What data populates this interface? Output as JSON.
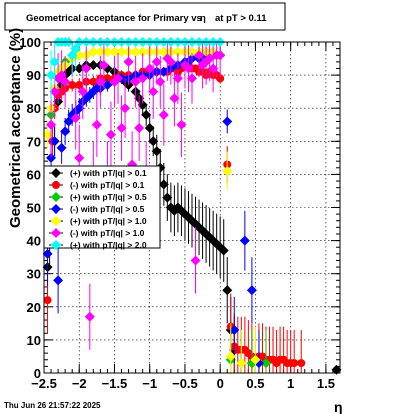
{
  "chart_data": {
    "type": "scatter",
    "title": "Geometrical acceptance for Primary vs",
    "title_symbol": "η",
    "title_suffix": "at pT > 0.11",
    "xlabel": "η",
    "ylabel": "Geometrical acceptance (%)",
    "xlim": [
      -2.5,
      1.7
    ],
    "ylim": [
      0,
      100
    ],
    "x_ticks": [
      -2.5,
      -2,
      -1.5,
      -1,
      -0.5,
      0,
      0.5,
      1,
      1.5
    ],
    "x_tick_labels": [
      "−2.5",
      "−2",
      "−1.5",
      "−1",
      "−0.5",
      "0",
      "0.5",
      "1",
      "1.5"
    ],
    "y_ticks": [
      0,
      10,
      20,
      30,
      40,
      50,
      60,
      70,
      80,
      90,
      100
    ],
    "y_tick_labels": [
      "0",
      "10",
      "20",
      "30",
      "40",
      "50",
      "60",
      "70",
      "80",
      "90",
      "100"
    ],
    "grid": true,
    "legend_position": "left-middle",
    "timestamp": "Thu Jun 26 21:57:22 2025",
    "series": [
      {
        "name": "(+) with pT/|q| > 0.1",
        "color": "#000000",
        "points": [
          [
            -2.45,
            32
          ],
          [
            -2.42,
            40
          ],
          [
            -2.38,
            56
          ],
          [
            -2.35,
            70
          ],
          [
            -2.3,
            82
          ],
          [
            -2.25,
            87
          ],
          [
            -2.2,
            90
          ],
          [
            -2.15,
            91
          ],
          [
            -2.1,
            92
          ],
          [
            -2.0,
            92
          ],
          [
            -1.9,
            93
          ],
          [
            -1.8,
            93
          ],
          [
            -1.7,
            93
          ],
          [
            -1.6,
            92
          ],
          [
            -1.5,
            91
          ],
          [
            -1.45,
            90
          ],
          [
            -1.4,
            89
          ],
          [
            -1.35,
            88
          ],
          [
            -1.3,
            87
          ],
          [
            -1.2,
            85
          ],
          [
            -1.15,
            83
          ],
          [
            -1.1,
            81
          ],
          [
            -1.05,
            78
          ],
          [
            -1.0,
            74
          ],
          [
            -0.95,
            70
          ],
          [
            -0.9,
            67
          ],
          [
            -0.85,
            62
          ],
          [
            -0.8,
            57
          ],
          [
            -0.75,
            53
          ],
          [
            -0.7,
            50
          ],
          [
            -0.65,
            49
          ],
          [
            -0.6,
            50
          ],
          [
            -0.55,
            49
          ],
          [
            -0.5,
            48
          ],
          [
            -0.45,
            47
          ],
          [
            -0.4,
            46
          ],
          [
            -0.35,
            45
          ],
          [
            -0.3,
            44
          ],
          [
            -0.25,
            43
          ],
          [
            -0.2,
            42
          ],
          [
            -0.15,
            41
          ],
          [
            -0.1,
            40
          ],
          [
            -0.05,
            39
          ],
          [
            0.0,
            38
          ],
          [
            0.05,
            37
          ],
          [
            0.1,
            25
          ],
          [
            0.15,
            13
          ],
          [
            0.2,
            7
          ],
          [
            0.3,
            3
          ],
          [
            0.45,
            3
          ],
          [
            1.65,
            1
          ]
        ]
      },
      {
        "name": "(-) with pT/|q| > 0.1",
        "color": "#ff0000",
        "points": [
          [
            -2.45,
            22
          ],
          [
            -2.42,
            50
          ],
          [
            -2.38,
            70
          ],
          [
            -2.35,
            80
          ],
          [
            -2.3,
            84
          ],
          [
            -2.25,
            85
          ],
          [
            -2.2,
            86
          ],
          [
            -2.1,
            87
          ],
          [
            -2.0,
            87
          ],
          [
            -1.9,
            88
          ],
          [
            -1.8,
            88
          ],
          [
            -1.7,
            89
          ],
          [
            -1.6,
            89
          ],
          [
            -1.5,
            89
          ],
          [
            -1.45,
            89
          ],
          [
            -1.4,
            90
          ],
          [
            -1.3,
            90
          ],
          [
            -1.2,
            90
          ],
          [
            -1.1,
            91
          ],
          [
            -1.0,
            91
          ],
          [
            -0.9,
            91
          ],
          [
            -0.8,
            91
          ],
          [
            -0.75,
            91
          ],
          [
            -0.7,
            92
          ],
          [
            -0.65,
            92
          ],
          [
            -0.6,
            91
          ],
          [
            -0.55,
            92
          ],
          [
            -0.5,
            93
          ],
          [
            -0.45,
            93
          ],
          [
            -0.4,
            92
          ],
          [
            -0.35,
            92
          ],
          [
            -0.3,
            91
          ],
          [
            -0.25,
            91
          ],
          [
            -0.2,
            90
          ],
          [
            -0.15,
            91
          ],
          [
            -0.1,
            90
          ],
          [
            -0.05,
            90
          ],
          [
            0.0,
            89
          ],
          [
            0.1,
            63
          ],
          [
            0.15,
            14
          ],
          [
            0.2,
            8
          ],
          [
            0.25,
            7
          ],
          [
            0.3,
            7
          ],
          [
            0.35,
            7
          ],
          [
            0.4,
            6
          ],
          [
            0.45,
            5
          ],
          [
            0.5,
            4
          ],
          [
            0.55,
            5
          ],
          [
            0.6,
            5
          ],
          [
            0.65,
            4
          ],
          [
            0.7,
            4
          ],
          [
            0.75,
            4
          ],
          [
            0.8,
            3
          ],
          [
            0.85,
            4
          ],
          [
            0.9,
            4
          ],
          [
            0.95,
            3
          ],
          [
            1.0,
            3
          ],
          [
            1.05,
            3
          ],
          [
            1.15,
            3
          ]
        ]
      },
      {
        "name": "(+) with pT/|q| > 0.5",
        "color": "#00cc00",
        "points": [
          [
            -2.4,
            78
          ],
          [
            -2.35,
            86
          ],
          [
            -2.3,
            90
          ],
          [
            -2.25,
            92
          ],
          [
            -2.2,
            94
          ],
          [
            -2.1,
            95
          ],
          [
            -2.0,
            96
          ],
          [
            -1.9,
            96
          ],
          [
            -1.8,
            97
          ],
          [
            -1.7,
            97
          ],
          [
            -1.6,
            97
          ],
          [
            -1.5,
            97
          ],
          [
            -1.4,
            97
          ],
          [
            -1.3,
            97
          ],
          [
            -1.2,
            97
          ],
          [
            -1.1,
            97
          ],
          [
            -1.0,
            97
          ],
          [
            -0.9,
            97
          ],
          [
            -0.8,
            97
          ],
          [
            -0.7,
            97
          ],
          [
            -0.6,
            97
          ],
          [
            -0.5,
            97
          ],
          [
            -0.4,
            97
          ],
          [
            -0.3,
            97
          ],
          [
            -0.2,
            97
          ],
          [
            -0.1,
            97
          ],
          [
            0.0,
            96
          ],
          [
            0.15,
            4
          ],
          [
            0.3,
            3
          ],
          [
            0.45,
            3
          ],
          [
            0.65,
            3
          ]
        ]
      },
      {
        "name": "(-) with pT/|q| > 0.5",
        "color": "#0000ff",
        "points": [
          [
            -2.45,
            36
          ],
          [
            -2.4,
            65
          ],
          [
            -2.35,
            70
          ],
          [
            -2.3,
            28
          ],
          [
            -2.25,
            68
          ],
          [
            -2.2,
            73
          ],
          [
            -2.15,
            76
          ],
          [
            -2.1,
            78
          ],
          [
            -2.05,
            79
          ],
          [
            -2.0,
            80
          ],
          [
            -1.95,
            82
          ],
          [
            -1.9,
            83
          ],
          [
            -1.85,
            84
          ],
          [
            -1.8,
            85
          ],
          [
            -1.75,
            86
          ],
          [
            -1.7,
            86
          ],
          [
            -1.6,
            87
          ],
          [
            -1.5,
            88
          ],
          [
            -1.45,
            89
          ],
          [
            -1.4,
            89
          ],
          [
            -1.3,
            89
          ],
          [
            -1.2,
            90
          ],
          [
            -1.1,
            90
          ],
          [
            -1.0,
            90
          ],
          [
            -0.9,
            91
          ],
          [
            -0.8,
            91
          ],
          [
            -0.7,
            92
          ],
          [
            -0.6,
            93
          ],
          [
            -0.5,
            94
          ],
          [
            -0.45,
            94
          ],
          [
            -0.4,
            95
          ],
          [
            -0.3,
            95
          ],
          [
            -0.2,
            96
          ],
          [
            -0.1,
            96
          ],
          [
            0.0,
            96
          ],
          [
            0.1,
            76
          ],
          [
            0.2,
            13
          ],
          [
            0.35,
            40
          ],
          [
            0.45,
            25
          ],
          [
            0.55,
            3
          ]
        ]
      },
      {
        "name": "(+) with pT/|q| > 1.0",
        "color": "#ffff00",
        "points": [
          [
            -2.45,
            72
          ],
          [
            -2.4,
            80
          ],
          [
            -2.35,
            86
          ],
          [
            -2.3,
            91
          ],
          [
            -2.25,
            92
          ],
          [
            -2.2,
            93
          ],
          [
            -2.1,
            95
          ],
          [
            -2.0,
            96
          ],
          [
            -1.9,
            96
          ],
          [
            -1.8,
            97
          ],
          [
            -1.7,
            97
          ],
          [
            -1.6,
            97
          ],
          [
            -1.5,
            97
          ],
          [
            -1.4,
            97
          ],
          [
            -1.3,
            97
          ],
          [
            -1.2,
            97
          ],
          [
            -1.1,
            97
          ],
          [
            -1.0,
            97
          ],
          [
            -0.9,
            97
          ],
          [
            -0.8,
            97
          ],
          [
            -0.7,
            97
          ],
          [
            -0.6,
            97
          ],
          [
            -0.5,
            97
          ],
          [
            -0.4,
            97
          ],
          [
            -0.3,
            97
          ],
          [
            -0.2,
            97
          ],
          [
            -0.1,
            97
          ],
          [
            0.0,
            96
          ],
          [
            0.1,
            61
          ],
          [
            0.15,
            5
          ],
          [
            0.3,
            3
          ],
          [
            0.5,
            4
          ]
        ]
      },
      {
        "name": "(-) with pT/|q| > 1.0",
        "color": "#ff00ff",
        "points": [
          [
            -2.4,
            75
          ],
          [
            -2.35,
            85
          ],
          [
            -2.3,
            89
          ],
          [
            -2.25,
            90
          ],
          [
            -2.2,
            88
          ],
          [
            -2.1,
            96
          ],
          [
            -2.05,
            77
          ],
          [
            -2.0,
            65
          ],
          [
            -1.95,
            85
          ],
          [
            -1.9,
            92
          ],
          [
            -1.85,
            17
          ],
          [
            -1.8,
            60
          ],
          [
            -1.75,
            75
          ],
          [
            -1.7,
            88
          ],
          [
            -1.65,
            93
          ],
          [
            -1.6,
            60
          ],
          [
            -1.55,
            72
          ],
          [
            -1.5,
            88
          ],
          [
            -1.45,
            89
          ],
          [
            -1.4,
            74
          ],
          [
            -1.35,
            80
          ],
          [
            -1.3,
            94
          ],
          [
            -1.25,
            63
          ],
          [
            -1.2,
            88
          ],
          [
            -1.15,
            74
          ],
          [
            -1.1,
            89
          ],
          [
            -1.05,
            60
          ],
          [
            -1.0,
            92
          ],
          [
            -0.95,
            85
          ],
          [
            -0.9,
            94
          ],
          [
            -0.85,
            88
          ],
          [
            -0.8,
            78
          ],
          [
            -0.75,
            95
          ],
          [
            -0.7,
            94
          ],
          [
            -0.65,
            83
          ],
          [
            -0.6,
            89
          ],
          [
            -0.55,
            75
          ],
          [
            -0.5,
            93
          ],
          [
            -0.45,
            92
          ],
          [
            -0.4,
            89
          ],
          [
            -0.35,
            34
          ],
          [
            -0.3,
            96
          ],
          [
            -0.25,
            93
          ],
          [
            -0.2,
            94
          ],
          [
            -0.15,
            95
          ],
          [
            -0.1,
            92
          ],
          [
            -0.05,
            96
          ],
          [
            0.0,
            96
          ]
        ]
      },
      {
        "name": "(+) with pT/|q| > 2.0",
        "color": "#00ffff",
        "points": [
          [
            -2.4,
            90
          ],
          [
            -2.35,
            94
          ],
          [
            -2.3,
            100
          ],
          [
            -2.25,
            100
          ],
          [
            -2.2,
            100
          ],
          [
            -2.15,
            100
          ],
          [
            -2.1,
            96
          ],
          [
            -2.05,
            98
          ],
          [
            -2.0,
            100
          ],
          [
            -1.9,
            100
          ],
          [
            -1.8,
            100
          ],
          [
            -1.7,
            100
          ],
          [
            -1.6,
            100
          ],
          [
            -1.5,
            100
          ],
          [
            -1.4,
            100
          ],
          [
            -1.3,
            100
          ],
          [
            -1.2,
            100
          ],
          [
            -1.1,
            100
          ],
          [
            -1.0,
            100
          ],
          [
            -0.9,
            100
          ],
          [
            -0.8,
            100
          ],
          [
            -0.7,
            100
          ],
          [
            -0.6,
            100
          ],
          [
            -0.5,
            100
          ],
          [
            -0.4,
            100
          ],
          [
            -0.3,
            100
          ],
          [
            -0.2,
            100
          ],
          [
            -0.1,
            100
          ],
          [
            0.0,
            100
          ]
        ]
      }
    ]
  }
}
